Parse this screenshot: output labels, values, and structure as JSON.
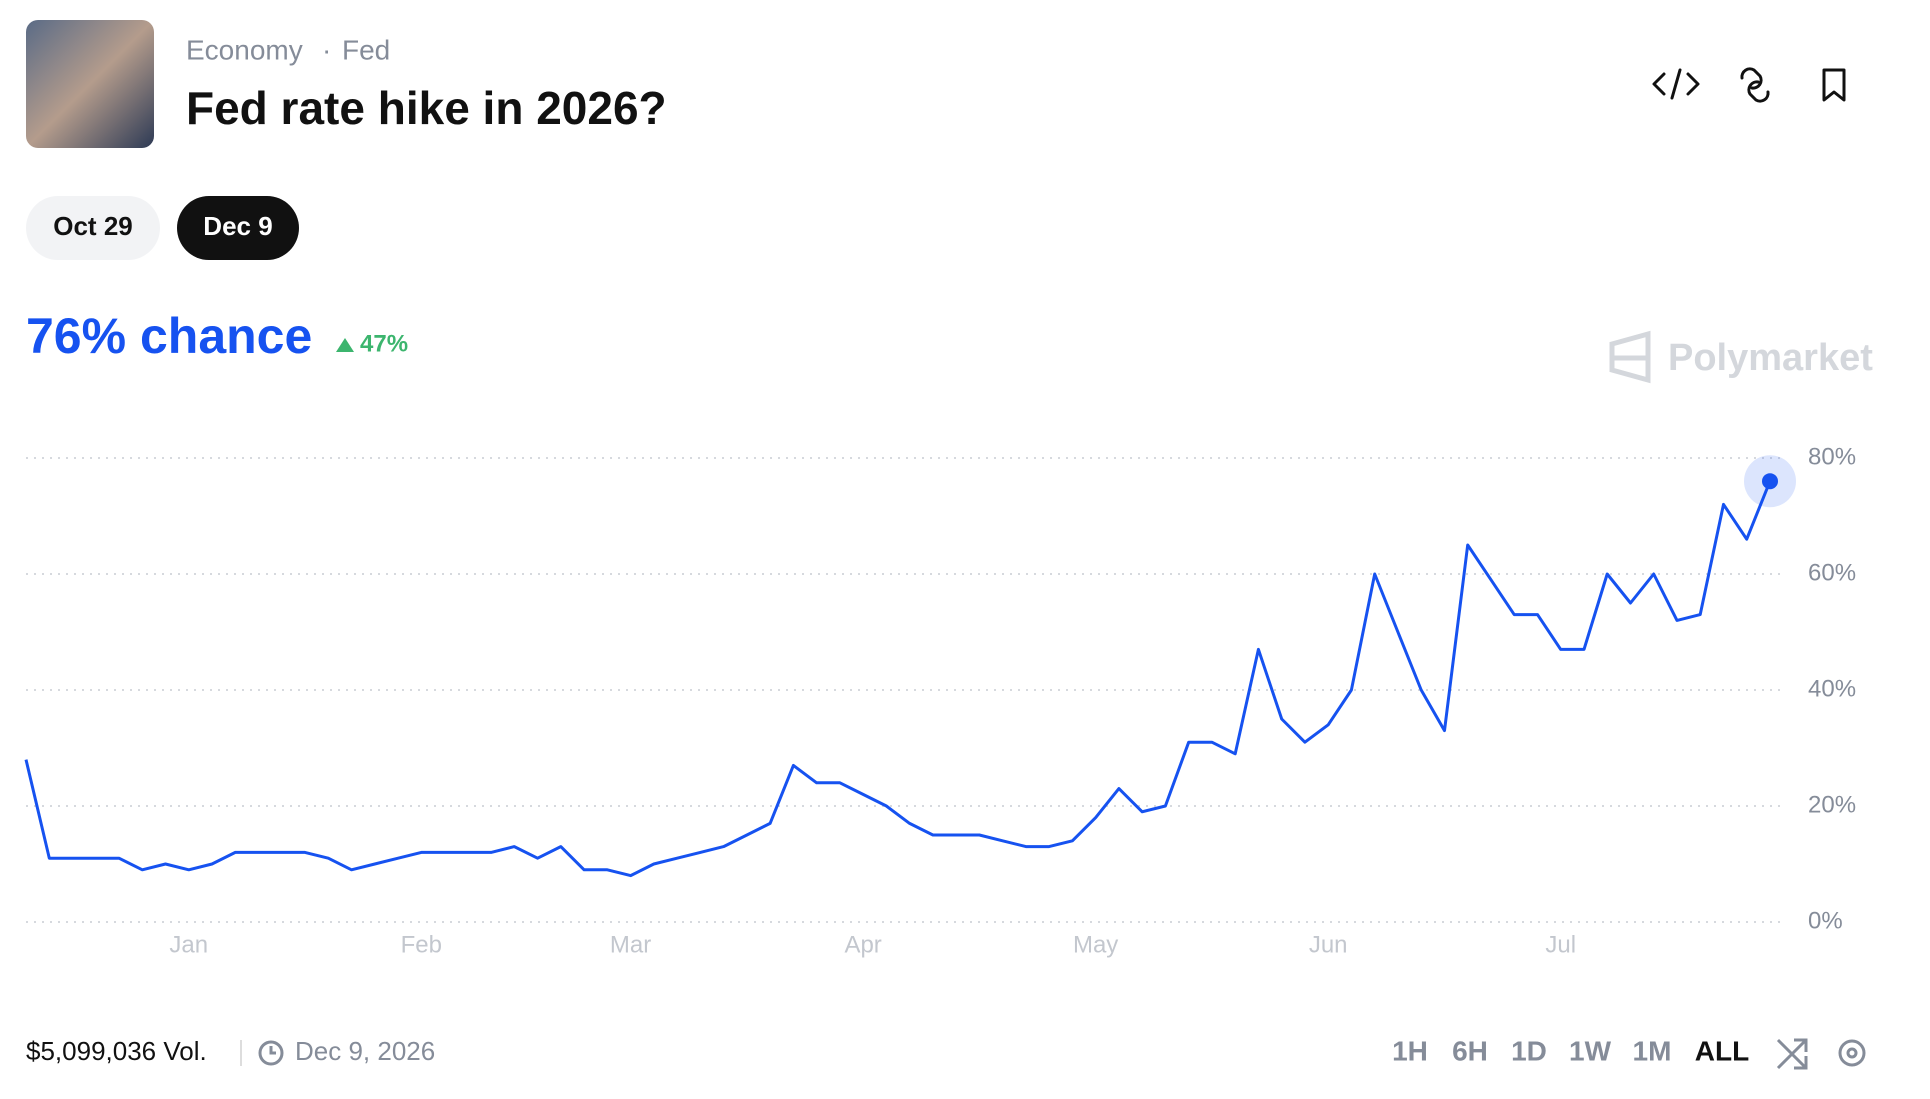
{
  "header": {
    "breadcrumb": [
      "Economy",
      "Fed"
    ],
    "title": "Fed rate hike in 2026?"
  },
  "tabs": [
    "Oct 29",
    "Dec 9"
  ],
  "chart_data": {
    "type": "line",
    "headline": "76% chance",
    "change": "47%",
    "watermark": "Polymarket",
    "color": "#1652f0",
    "categories": [
      null,
      null,
      null,
      null,
      null,
      null,
      null,
      "Jan",
      null,
      null,
      null,
      null,
      null,
      null,
      null,
      null,
      null,
      "Feb",
      null,
      null,
      null,
      null,
      null,
      null,
      null,
      null,
      "Mar",
      null,
      null,
      null,
      null,
      null,
      null,
      null,
      null,
      null,
      "Apr",
      null,
      null,
      null,
      null,
      null,
      null,
      null,
      null,
      null,
      "May",
      null,
      null,
      null,
      null,
      null,
      null,
      null,
      null,
      null,
      "Jun",
      null,
      null,
      null,
      null,
      null,
      null,
      null,
      null,
      null,
      "Jul",
      null,
      null,
      null,
      null,
      null,
      null,
      null,
      null,
      null
    ],
    "values": [
      28,
      11,
      11,
      11,
      11,
      9,
      10,
      9,
      10,
      12,
      12,
      12,
      12,
      11,
      9,
      10,
      11,
      12,
      12,
      12,
      12,
      13,
      11,
      13,
      9,
      9,
      8,
      10,
      11,
      12,
      13,
      15,
      17,
      27,
      24,
      24,
      22,
      20,
      17,
      15,
      15,
      15,
      14,
      13,
      13,
      14,
      18,
      23,
      19,
      20,
      31,
      31,
      29,
      47,
      35,
      31,
      34,
      40,
      60,
      50,
      40,
      33,
      65,
      59,
      53,
      53,
      47,
      47,
      60,
      55,
      60,
      52,
      53,
      72,
      66,
      76
    ],
    "ylim": [
      0,
      80
    ],
    "yticks": [
      {
        "value": 0,
        "label": "0%"
      },
      {
        "value": 20,
        "label": "20%"
      },
      {
        "value": 40,
        "label": "40%"
      },
      {
        "value": 60,
        "label": "60%"
      },
      {
        "value": 80,
        "label": "80%"
      }
    ],
    "grid": true
  },
  "footer": {
    "volume": "$5,099,036 Vol.",
    "date": "Dec 9, 2026",
    "ranges": [
      "1H",
      "6H",
      "1D",
      "1W",
      "1M",
      "ALL"
    ]
  }
}
